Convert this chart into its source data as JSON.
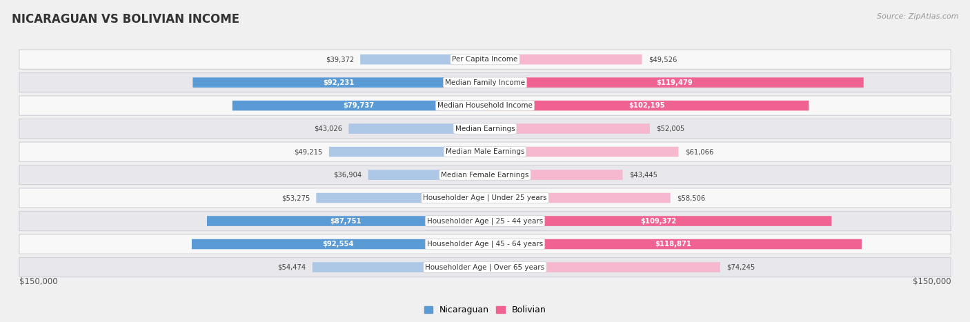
{
  "title": "NICARAGUAN VS BOLIVIAN INCOME",
  "source": "Source: ZipAtlas.com",
  "categories": [
    "Per Capita Income",
    "Median Family Income",
    "Median Household Income",
    "Median Earnings",
    "Median Male Earnings",
    "Median Female Earnings",
    "Householder Age | Under 25 years",
    "Householder Age | 25 - 44 years",
    "Householder Age | 45 - 64 years",
    "Householder Age | Over 65 years"
  ],
  "nicaraguan_values": [
    39372,
    92231,
    79737,
    43026,
    49215,
    36904,
    53275,
    87751,
    92554,
    54474
  ],
  "bolivian_values": [
    49526,
    119479,
    102195,
    52005,
    61066,
    43445,
    58506,
    109372,
    118871,
    74245
  ],
  "nicaraguan_labels": [
    "$39,372",
    "$92,231",
    "$79,737",
    "$43,026",
    "$49,215",
    "$36,904",
    "$53,275",
    "$87,751",
    "$92,554",
    "$54,474"
  ],
  "bolivian_labels": [
    "$49,526",
    "$119,479",
    "$102,195",
    "$52,005",
    "$61,066",
    "$43,445",
    "$58,506",
    "$109,372",
    "$118,871",
    "$74,245"
  ],
  "nicaraguan_color_light": "#adc8e6",
  "nicaraguan_color_dark": "#5b9bd5",
  "bolivian_color_light": "#f5b8ce",
  "bolivian_color_dark": "#f06292",
  "max_value": 150000,
  "xlabel_left": "$150,000",
  "xlabel_right": "$150,000",
  "legend_nicaraguan": "Nicaraguan",
  "legend_bolivian": "Bolivian",
  "bg_color": "#f0f0f0",
  "row_bg_even": "#f8f8f8",
  "row_bg_odd": "#e8e8ec",
  "row_border": "#d0d0d8"
}
